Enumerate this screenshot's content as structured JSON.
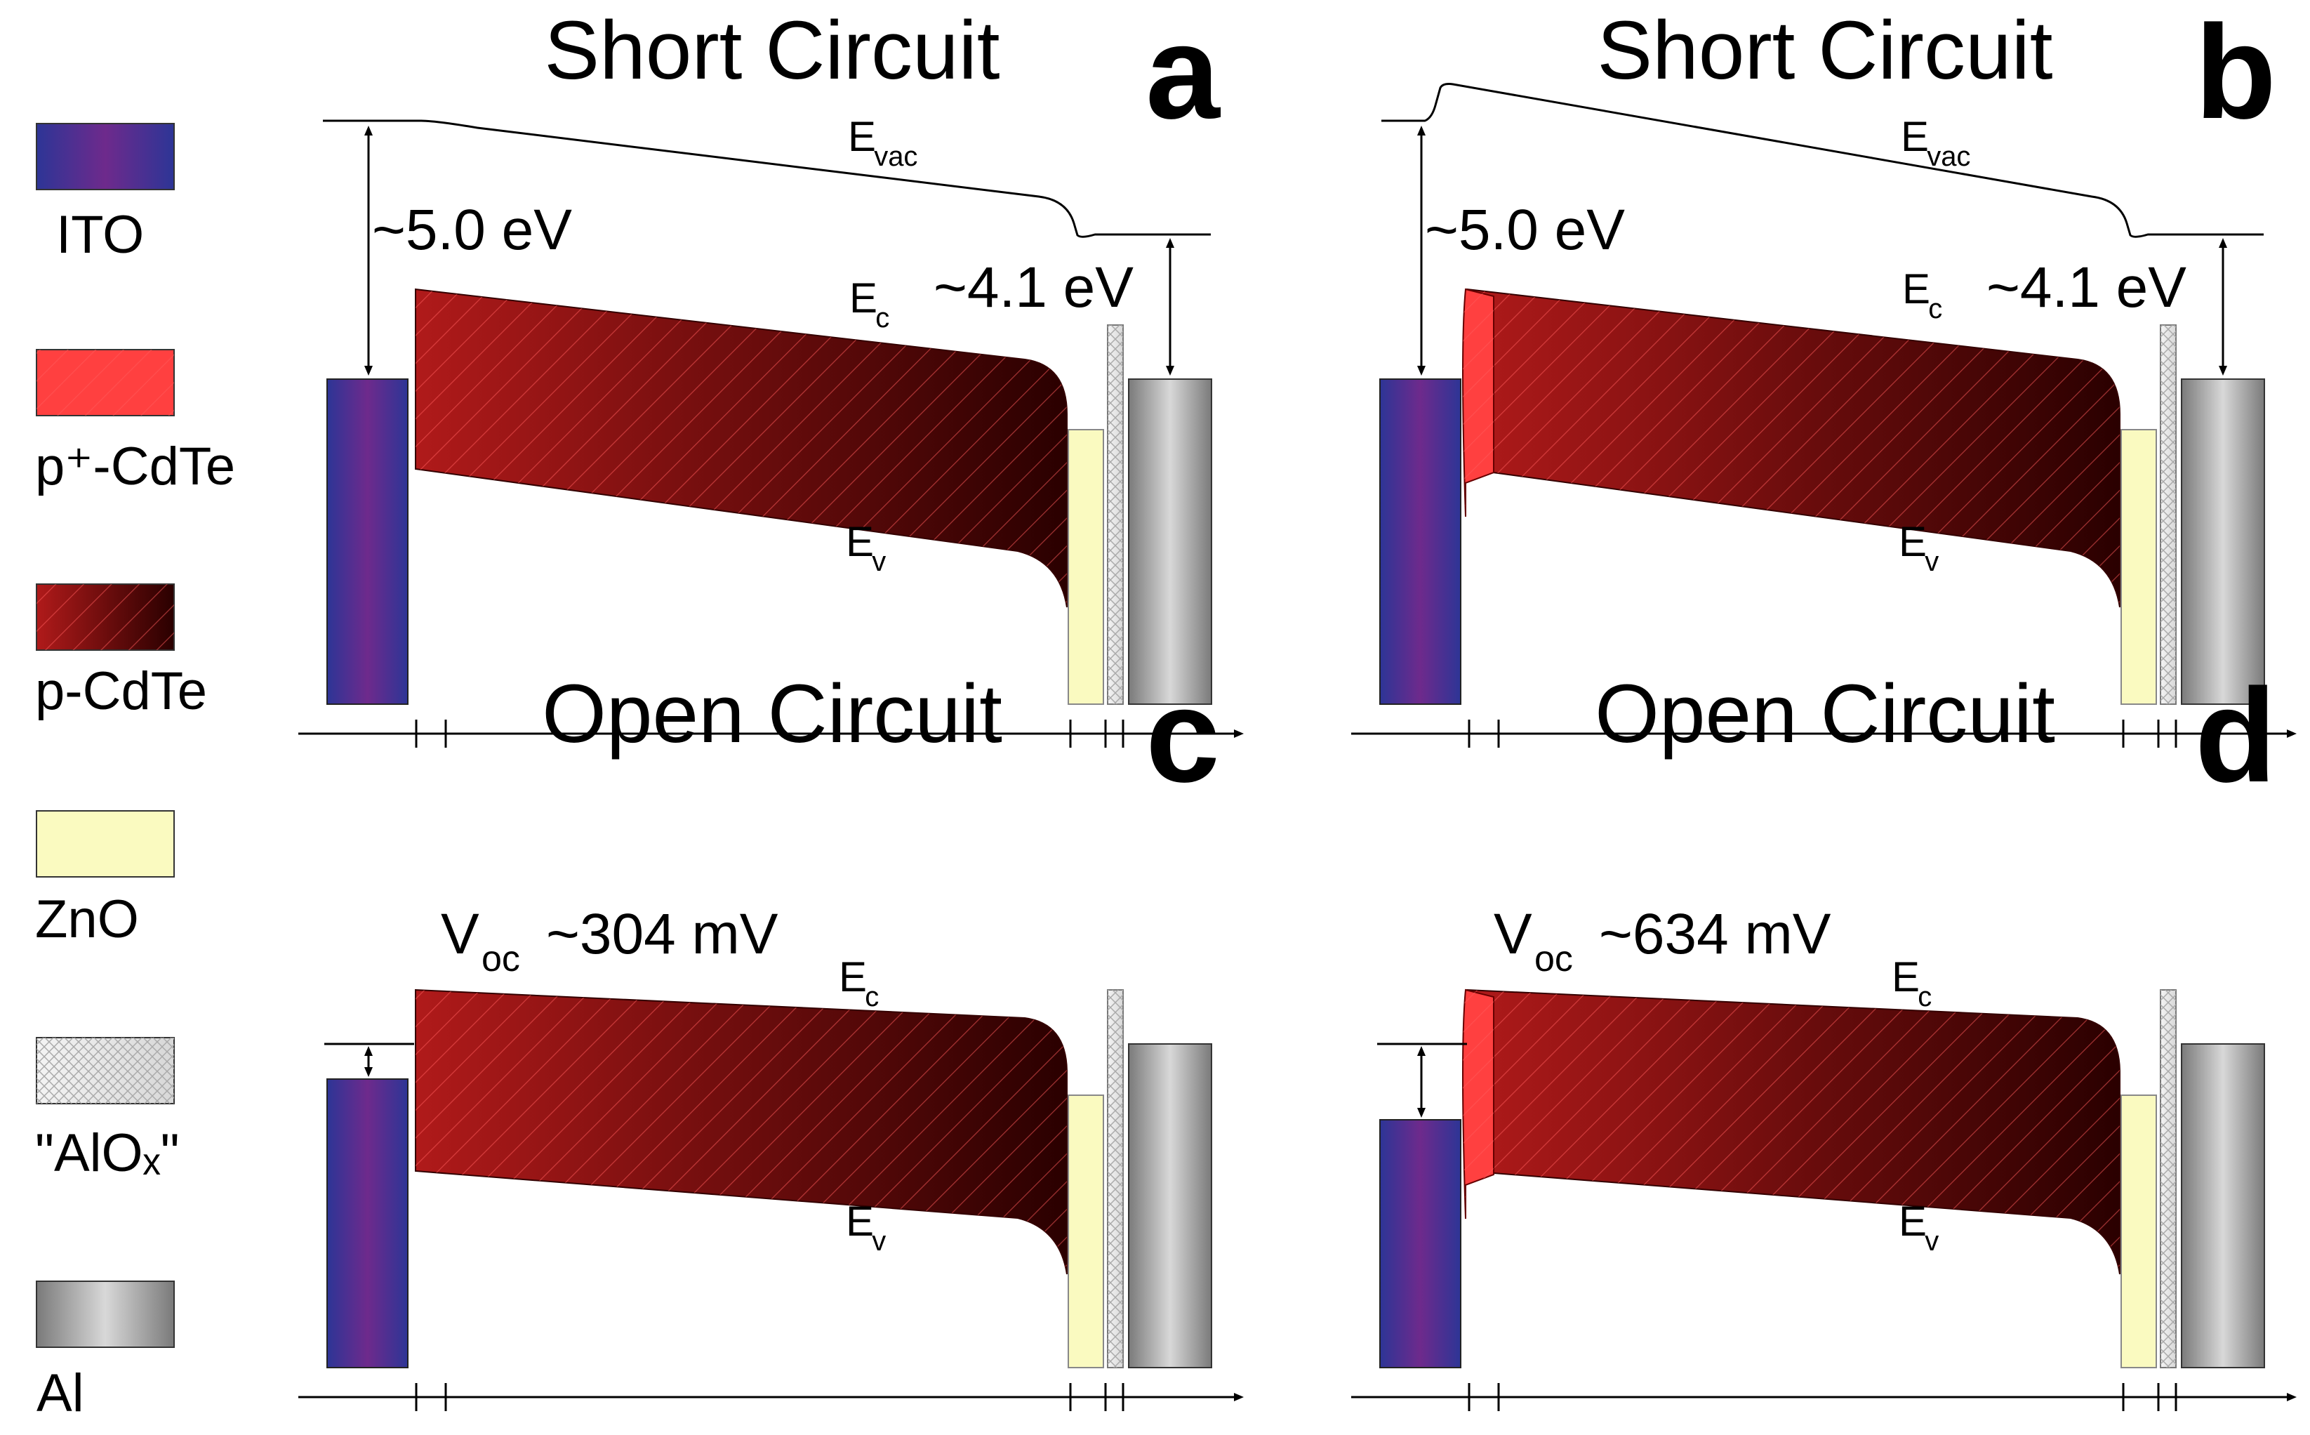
{
  "legend": [
    {
      "label": "ITO",
      "name": "ito"
    },
    {
      "label": "p⁺-CdTe",
      "name": "p-plus-cdte"
    },
    {
      "label": "p-CdTe",
      "name": "p-cdte"
    },
    {
      "label": "ZnO",
      "name": "zno"
    },
    {
      "label": "\"AlOₓ\"",
      "name": "alox"
    },
    {
      "label": "Al",
      "name": "al"
    }
  ],
  "colors": {
    "ito_top": "#2d3596",
    "ito_mid": "#6e2a8c",
    "cdte_light": "#b01a1a",
    "cdte_dark": "#2a0000",
    "p_plus": "#ff4040",
    "zno": "#fafac0",
    "alox": "#e6e6e6",
    "al_light": "#d8d8d8",
    "al_dark": "#7a7a7a",
    "hatch": "#ff5a5a"
  },
  "panels": [
    {
      "id": "a",
      "letter": "a",
      "title": "Short Circuit",
      "evac_label": "E",
      "evac_sub": "vac",
      "ec_label": "E",
      "ec_sub": "c",
      "ev_label": "E",
      "ev_sub": "v",
      "work_ito": "~5.0 eV",
      "work_al": "~4.1 eV",
      "has_p_plus": false
    },
    {
      "id": "b",
      "letter": "b",
      "title": "Short Circuit",
      "evac_label": "E",
      "evac_sub": "vac",
      "ec_label": "E",
      "ec_sub": "c",
      "ev_label": "E",
      "ev_sub": "v",
      "work_ito": "~5.0 eV",
      "work_al": "~4.1 eV",
      "has_p_plus": true
    },
    {
      "id": "c",
      "letter": "c",
      "title": "Open Circuit",
      "ec_label": "E",
      "ec_sub": "c",
      "ev_label": "E",
      "ev_sub": "v",
      "voc_label": "V",
      "voc_sub": "oc",
      "voc_value": "~304 mV",
      "has_p_plus": false
    },
    {
      "id": "d",
      "letter": "d",
      "title": "Open Circuit",
      "ec_label": "E",
      "ec_sub": "c",
      "ev_label": "E",
      "ev_sub": "v",
      "voc_label": "V",
      "voc_sub": "oc",
      "voc_value": "~634 mV",
      "has_p_plus": true
    }
  ]
}
